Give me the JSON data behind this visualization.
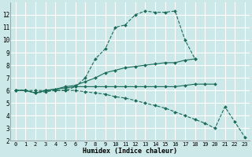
{
  "xlabel": "Humidex (Indice chaleur)",
  "bg_color": "#cce8e8",
  "grid_color": "#ffffff",
  "line_color": "#1a6b5a",
  "line1_x": [
    0,
    1,
    2,
    3,
    4,
    5,
    6,
    7,
    8,
    9,
    10,
    11,
    12,
    13,
    14,
    15,
    16,
    17,
    18
  ],
  "line1_y": [
    6,
    6,
    6,
    6,
    6,
    6,
    6.3,
    7.0,
    8.5,
    9.3,
    11.0,
    11.2,
    12.0,
    12.3,
    12.2,
    12.2,
    12.3,
    10.0,
    8.5
  ],
  "line2_x": [
    0,
    1,
    2,
    3,
    4,
    5,
    6,
    7,
    8,
    9,
    10,
    11,
    12,
    13,
    14,
    15,
    16,
    17,
    18
  ],
  "line2_y": [
    6,
    6,
    5.8,
    6.0,
    6.1,
    6.3,
    6.4,
    6.7,
    7.0,
    7.4,
    7.6,
    7.8,
    7.9,
    8.0,
    8.1,
    8.2,
    8.2,
    8.4,
    8.5
  ],
  "line3_x": [
    0,
    1,
    2,
    3,
    4,
    5,
    6,
    7,
    8,
    9,
    10,
    11,
    12,
    13,
    14,
    15,
    16,
    17,
    18,
    19,
    20
  ],
  "line3_y": [
    6,
    6,
    5.8,
    6.0,
    6.1,
    6.2,
    6.3,
    6.3,
    6.3,
    6.3,
    6.3,
    6.3,
    6.3,
    6.3,
    6.3,
    6.3,
    6.3,
    6.4,
    6.5,
    6.5,
    6.5
  ],
  "line4_x": [
    0,
    1,
    2,
    3,
    4,
    5,
    6,
    7,
    8,
    9,
    10,
    11,
    12,
    13,
    14,
    15,
    16,
    17,
    18,
    19,
    20,
    21,
    22,
    23
  ],
  "line4_y": [
    6,
    6,
    5.8,
    5.9,
    6.0,
    6.0,
    6.0,
    5.9,
    5.8,
    5.7,
    5.5,
    5.4,
    5.2,
    5.0,
    4.8,
    4.6,
    4.3,
    4.0,
    3.7,
    3.4,
    3.0,
    4.7,
    3.5,
    2.3
  ],
  "xlim": [
    -0.5,
    23.5
  ],
  "ylim": [
    2,
    13
  ],
  "xticks": [
    0,
    1,
    2,
    3,
    4,
    5,
    6,
    7,
    8,
    9,
    10,
    11,
    12,
    13,
    14,
    15,
    16,
    17,
    18,
    19,
    20,
    21,
    22,
    23
  ],
  "yticks": [
    2,
    3,
    4,
    5,
    6,
    7,
    8,
    9,
    10,
    11,
    12
  ]
}
